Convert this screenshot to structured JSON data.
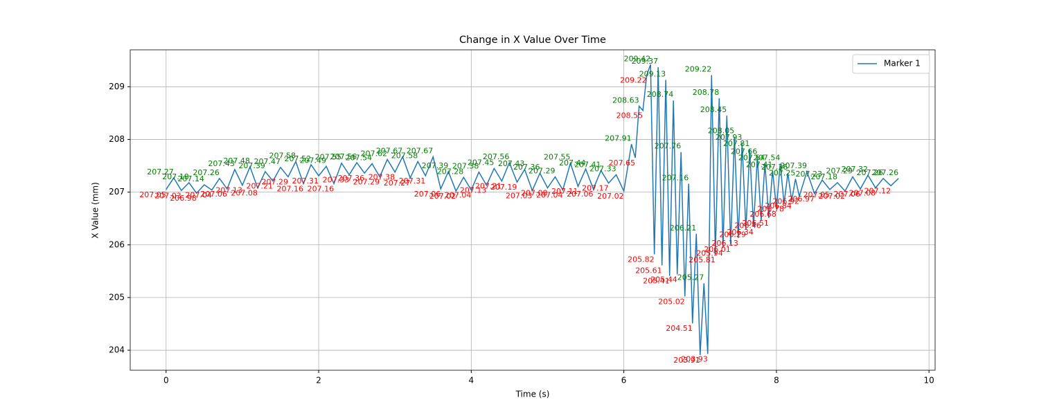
{
  "chart_data": {
    "type": "line",
    "title": "Change in X Value Over Time",
    "x_label": "Time (s)",
    "y_label": "X Value (mm)",
    "x": [
      0.0,
      0.1,
      0.2,
      0.3,
      0.4,
      0.5,
      0.6,
      0.7,
      0.8,
      0.9,
      1.0,
      1.1,
      1.2,
      1.3,
      1.4,
      1.5,
      1.6,
      1.7,
      1.8,
      1.9,
      2.0,
      2.1,
      2.2,
      2.3,
      2.4,
      2.5,
      2.6,
      2.7,
      2.8,
      2.9,
      3.0,
      3.1,
      3.2,
      3.3,
      3.4,
      3.5,
      3.6,
      3.7,
      3.8,
      3.9,
      4.0,
      4.1,
      4.2,
      4.3,
      4.4,
      4.5,
      4.6,
      4.7,
      4.8,
      4.9,
      5.0,
      5.1,
      5.2,
      5.3,
      5.4,
      5.5,
      5.6,
      5.7,
      5.8,
      5.9,
      6.0,
      6.1,
      6.15,
      6.2,
      6.25,
      6.3,
      6.35,
      6.4,
      6.45,
      6.5,
      6.55,
      6.6,
      6.65,
      6.7,
      6.75,
      6.8,
      6.85,
      6.9,
      6.95,
      7.0,
      7.05,
      7.1,
      7.15,
      7.2,
      7.25,
      7.3,
      7.35,
      7.4,
      7.45,
      7.5,
      7.55,
      7.6,
      7.65,
      7.7,
      7.75,
      7.8,
      7.85,
      7.9,
      7.95,
      8.0,
      8.05,
      8.1,
      8.15,
      8.2,
      8.25,
      8.3,
      8.4,
      8.5,
      8.6,
      8.7,
      8.8,
      8.9,
      9.0,
      9.1,
      9.2,
      9.3,
      9.4,
      9.5,
      9.6
    ],
    "series": [
      {
        "name": "Marker 1",
        "color": "#1f77b4",
        "values": [
          207.05,
          207.27,
          207.03,
          207.18,
          206.98,
          207.14,
          207.04,
          207.26,
          207.06,
          207.43,
          207.13,
          207.48,
          207.08,
          207.39,
          207.21,
          207.47,
          207.29,
          207.58,
          207.16,
          207.52,
          207.31,
          207.49,
          207.16,
          207.55,
          207.33,
          207.56,
          207.36,
          207.54,
          207.29,
          207.62,
          207.38,
          207.67,
          207.27,
          207.58,
          207.31,
          207.67,
          207.06,
          207.39,
          207.02,
          207.28,
          207.04,
          207.38,
          207.13,
          207.45,
          207.21,
          207.56,
          207.19,
          207.43,
          207.03,
          207.36,
          207.08,
          207.29,
          207.04,
          207.55,
          207.11,
          207.44,
          207.06,
          207.41,
          207.17,
          207.33,
          207.02,
          207.91,
          207.65,
          208.63,
          208.55,
          209.22,
          209.42,
          205.82,
          209.37,
          205.61,
          209.13,
          205.41,
          208.74,
          205.44,
          207.76,
          205.02,
          207.16,
          204.51,
          206.21,
          203.91,
          205.27,
          203.93,
          209.22,
          205.81,
          208.78,
          205.94,
          208.45,
          206.01,
          208.05,
          206.13,
          207.93,
          206.29,
          207.81,
          206.34,
          207.66,
          206.46,
          207.54,
          206.51,
          207.41,
          206.68,
          207.54,
          206.78,
          207.36,
          206.84,
          207.25,
          206.92,
          207.39,
          206.97,
          207.23,
          207.05,
          207.18,
          207.02,
          207.29,
          207.06,
          207.32,
          207.08,
          207.26,
          207.12,
          207.26
        ]
      }
    ],
    "peak_color": "green",
    "valley_color": "red",
    "xlim": [
      -0.47,
      10.08
    ],
    "xticks": [
      0,
      2,
      4,
      6,
      8,
      10
    ],
    "ylim": [
      203.62,
      209.7
    ],
    "yticks": [
      204,
      205,
      206,
      207,
      208,
      209
    ],
    "grid": true,
    "legend": "upper right"
  }
}
